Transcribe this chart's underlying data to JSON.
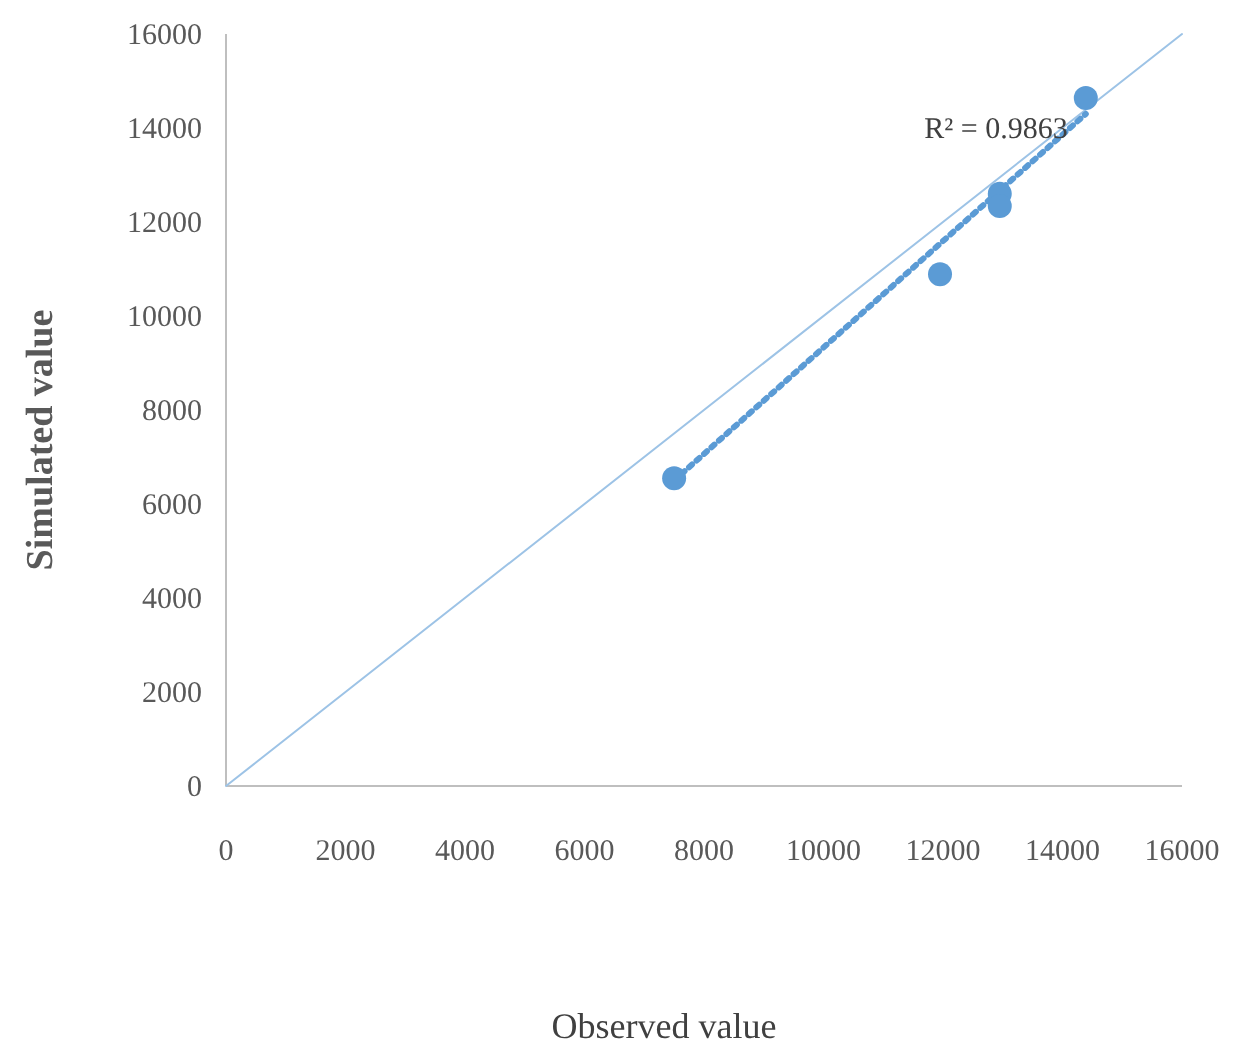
{
  "chart_data": {
    "type": "scatter",
    "xlabel": "Observed value",
    "ylabel": "Simulated value",
    "xlim": [
      0,
      16000
    ],
    "ylim": [
      0,
      16000
    ],
    "xticks": [
      0,
      2000,
      4000,
      6000,
      8000,
      10000,
      12000,
      14000,
      16000
    ],
    "yticks": [
      0,
      2000,
      4000,
      6000,
      8000,
      10000,
      12000,
      14000,
      16000
    ],
    "grid": false,
    "series": [
      {
        "type": "line",
        "color": "#9dc3e6",
        "x": [
          0,
          16000
        ],
        "values": [
          0,
          16000
        ],
        "line_style": "solid"
      },
      {
        "type": "line",
        "color": "#5b9bd5",
        "x": [
          7500,
          14390
        ],
        "values": [
          6500,
          14300
        ],
        "line_style": "dotted"
      },
      {
        "color": "#5b9bd5",
        "x": [
          7500,
          11950,
          12950,
          12950,
          14390
        ],
        "values": [
          6550,
          10890,
          12600,
          12340,
          14640
        ],
        "marker": "circle"
      }
    ],
    "annotations": [
      "R² = 0.9863"
    ]
  }
}
